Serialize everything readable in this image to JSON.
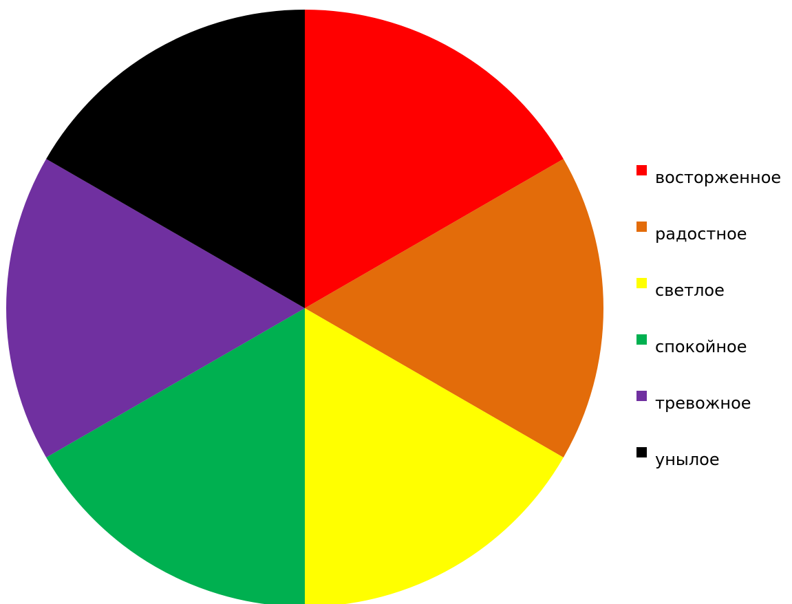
{
  "chart_data": {
    "type": "pie",
    "title": "",
    "legend_position": "right",
    "start_angle": "12 o'clock, clockwise",
    "slices": [
      {
        "label": "восторженное",
        "value": 1,
        "color": "#FF0000"
      },
      {
        "label": "радостное",
        "value": 1,
        "color": "#E36C0A"
      },
      {
        "label": "светлое",
        "value": 1,
        "color": "#FFFF00"
      },
      {
        "label": "спокойное",
        "value": 1,
        "color": "#00B050"
      },
      {
        "label": "тревожное",
        "value": 1,
        "color": "#7030A0"
      },
      {
        "label": "унылое",
        "value": 1,
        "color": "#000000"
      }
    ]
  }
}
